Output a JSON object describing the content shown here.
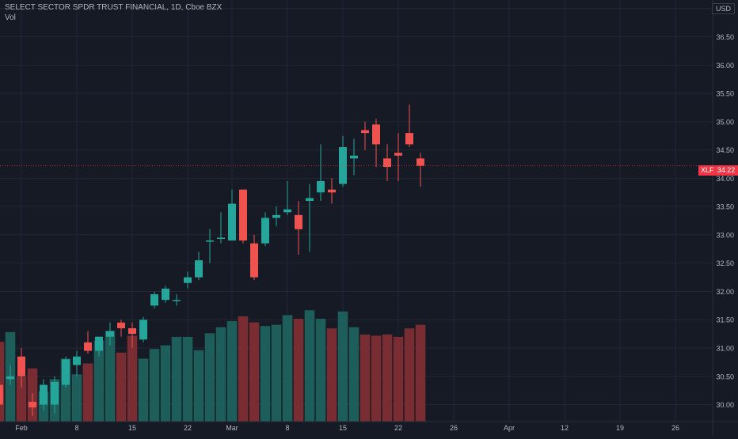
{
  "header": {
    "symbol_title": "SELECT SECTOR SPDR TRUST FINANCIAL, 1D, Cboe BZX",
    "volume_label": "Vol",
    "currency": "USD"
  },
  "last_price": {
    "symbol": "XLF",
    "value": "34.22",
    "numeric": 34.22,
    "color": "#f23645"
  },
  "colors": {
    "background": "#161a25",
    "grid": "#232733",
    "up_candle": "#26a69a",
    "down_candle": "#ef5350",
    "up_volume": "#1e5e5a",
    "down_volume": "#7a2c33",
    "axis_text": "#b2b5be"
  },
  "chart_data": {
    "type": "candlestick",
    "title": "SELECT SECTOR SPDR TRUST FINANCIAL, 1D, Cboe BZX",
    "yunit": "USD",
    "ylim": [
      29.7,
      37.15
    ],
    "y_ticks": [
      "37.00",
      "36.50",
      "36.00",
      "35.50",
      "35.00",
      "34.50",
      "34.00",
      "33.50",
      "33.00",
      "32.50",
      "32.00",
      "31.50",
      "31.00",
      "30.50",
      "30.00"
    ],
    "x_ticks": [
      "Feb",
      "8",
      "15",
      "22",
      "Mar",
      "8",
      "15",
      "22",
      "26",
      "Apr",
      "12",
      "19",
      "26"
    ],
    "x_tick_index": [
      2,
      7,
      12,
      17,
      21,
      26,
      31,
      36,
      41,
      46,
      51,
      56,
      61
    ],
    "grid": true,
    "candles": [
      {
        "o": 30.35,
        "h": 30.45,
        "l": 29.95,
        "c": 30.0
      },
      {
        "o": 30.45,
        "h": 30.7,
        "l": 30.35,
        "c": 30.5
      },
      {
        "o": 30.85,
        "h": 31.0,
        "l": 30.3,
        "c": 30.5
      },
      {
        "o": 30.05,
        "h": 30.2,
        "l": 29.8,
        "c": 29.95
      },
      {
        "o": 30.0,
        "h": 30.45,
        "l": 29.9,
        "c": 30.35
      },
      {
        "o": 30.0,
        "h": 30.5,
        "l": 29.85,
        "c": 30.4
      },
      {
        "o": 30.35,
        "h": 30.85,
        "l": 30.3,
        "c": 30.8
      },
      {
        "o": 30.7,
        "h": 30.95,
        "l": 30.5,
        "c": 30.85
      },
      {
        "o": 31.1,
        "h": 31.3,
        "l": 30.9,
        "c": 30.95
      },
      {
        "o": 30.95,
        "h": 31.2,
        "l": 30.85,
        "c": 31.2
      },
      {
        "o": 31.2,
        "h": 31.45,
        "l": 31.05,
        "c": 31.3
      },
      {
        "o": 31.45,
        "h": 31.5,
        "l": 31.2,
        "c": 31.35
      },
      {
        "o": 31.35,
        "h": 31.45,
        "l": 31.0,
        "c": 31.25
      },
      {
        "o": 31.15,
        "h": 31.55,
        "l": 31.1,
        "c": 31.5
      },
      {
        "o": 31.75,
        "h": 32.0,
        "l": 31.7,
        "c": 31.95
      },
      {
        "o": 31.85,
        "h": 32.1,
        "l": 31.8,
        "c": 32.05
      },
      {
        "o": 31.85,
        "h": 31.95,
        "l": 31.75,
        "c": 31.85
      },
      {
        "o": 32.15,
        "h": 32.35,
        "l": 32.05,
        "c": 32.25
      },
      {
        "o": 32.25,
        "h": 32.7,
        "l": 32.2,
        "c": 32.55
      },
      {
        "o": 32.9,
        "h": 33.1,
        "l": 32.5,
        "c": 32.9
      },
      {
        "o": 32.95,
        "h": 33.4,
        "l": 32.85,
        "c": 32.95
      },
      {
        "o": 32.9,
        "h": 33.8,
        "l": 32.9,
        "c": 33.55
      },
      {
        "o": 33.8,
        "h": 33.8,
        "l": 32.85,
        "c": 32.9
      },
      {
        "o": 32.85,
        "h": 33.0,
        "l": 32.2,
        "c": 32.25
      },
      {
        "o": 32.85,
        "h": 33.4,
        "l": 32.8,
        "c": 33.3
      },
      {
        "o": 33.3,
        "h": 33.5,
        "l": 33.15,
        "c": 33.35
      },
      {
        "o": 33.4,
        "h": 33.95,
        "l": 33.35,
        "c": 33.45
      },
      {
        "o": 33.35,
        "h": 33.6,
        "l": 32.65,
        "c": 33.1
      },
      {
        "o": 33.6,
        "h": 33.9,
        "l": 32.7,
        "c": 33.65
      },
      {
        "o": 33.75,
        "h": 34.6,
        "l": 33.6,
        "c": 33.95
      },
      {
        "o": 33.8,
        "h": 34.0,
        "l": 33.55,
        "c": 33.75
      },
      {
        "o": 33.9,
        "h": 34.75,
        "l": 33.85,
        "c": 34.55
      },
      {
        "o": 34.35,
        "h": 34.7,
        "l": 34.05,
        "c": 34.4
      },
      {
        "o": 34.85,
        "h": 35.0,
        "l": 34.5,
        "c": 34.8
      },
      {
        "o": 34.95,
        "h": 35.05,
        "l": 34.2,
        "c": 34.6
      },
      {
        "o": 34.35,
        "h": 34.6,
        "l": 33.95,
        "c": 34.2
      },
      {
        "o": 34.45,
        "h": 34.8,
        "l": 33.95,
        "c": 34.4
      },
      {
        "o": 34.8,
        "h": 35.3,
        "l": 34.55,
        "c": 34.6
      },
      {
        "o": 34.35,
        "h": 34.45,
        "l": 33.85,
        "c": 34.22
      }
    ],
    "volume": {
      "label": "Vol",
      "values": [
        66,
        74,
        37,
        44,
        25,
        35,
        52,
        39,
        48,
        67,
        75,
        57,
        71,
        52,
        60,
        63,
        70,
        70,
        59,
        73,
        78,
        83,
        87,
        82,
        79,
        80,
        88,
        85,
        92,
        85,
        77,
        91,
        78,
        72,
        71,
        72,
        70,
        77,
        80
      ]
    }
  }
}
